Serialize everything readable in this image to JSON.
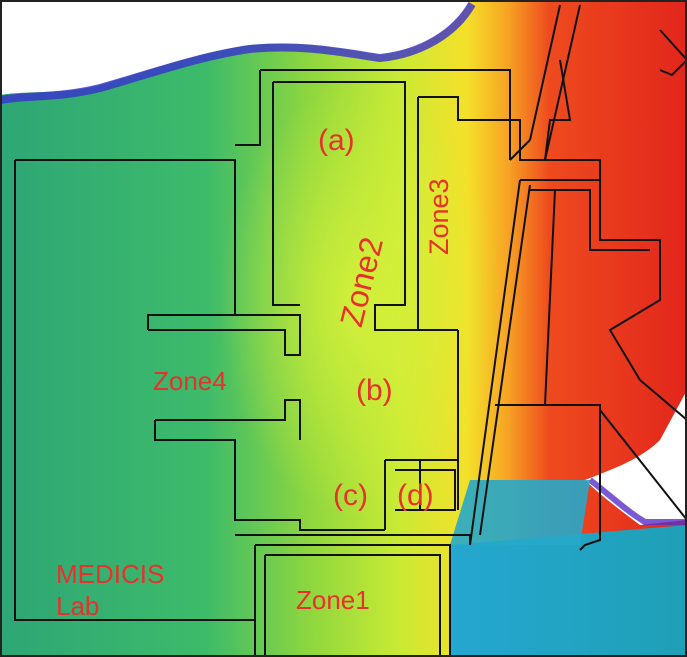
{
  "labels": {
    "a": "(a)",
    "b": "(b)",
    "c": "(c)",
    "d": "(d)",
    "zone1": "Zone1",
    "zone2": "Zone2",
    "zone3": "Zone3",
    "zone4": "Zone4",
    "lab_line1": "MEDICIS",
    "lab_line2": "Lab"
  },
  "colors": {
    "label_text": "#e8312b",
    "walls": "#111111",
    "coverage_high": "#e8321d",
    "coverage_mid": "#9fe03a",
    "coverage_low": "#2fae6f",
    "coverage_edge": "#3a2fd0"
  }
}
